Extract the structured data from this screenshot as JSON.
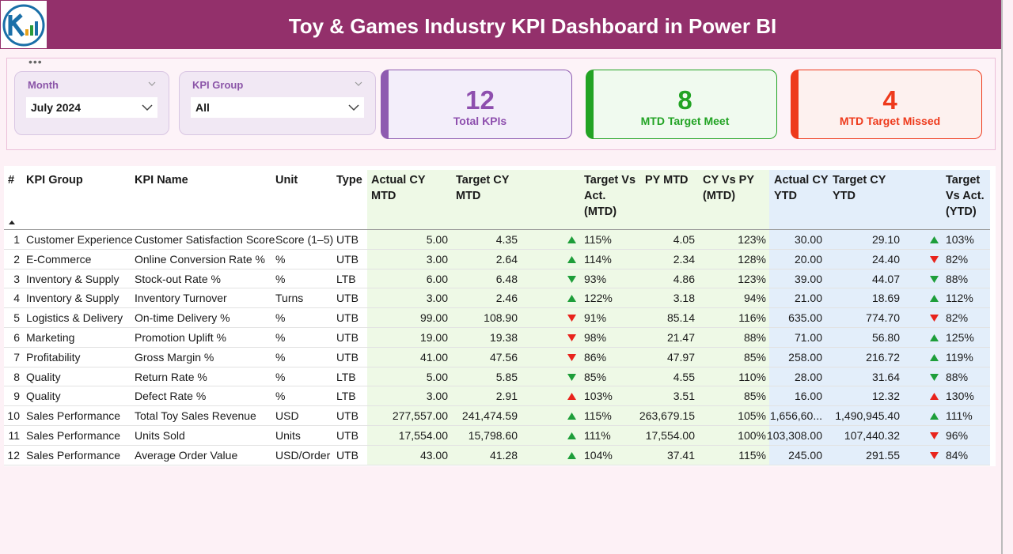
{
  "header": {
    "title": "Toy & Games Industry KPI Dashboard in Power BI"
  },
  "filters": [
    {
      "label": "Month",
      "value": "July 2024"
    },
    {
      "label": "KPI Group",
      "value": "All"
    }
  ],
  "cards": [
    {
      "value": 12,
      "label": "Total KPIs",
      "color": "#8e4fae",
      "accent": "#8e5bb0",
      "background": "#f3eefa"
    },
    {
      "value": 8,
      "label": "MTD Target Meet",
      "color": "#22a324",
      "accent": "#22a324",
      "background": "#f0faef"
    },
    {
      "value": 4,
      "label": "MTD Target Missed",
      "color": "#ee3a1c",
      "accent": "#ee3a1c",
      "background": "#fdf1ef"
    }
  ],
  "table": {
    "columns": [
      "#",
      "KPI Group",
      "KPI Name",
      "Unit",
      "Type",
      "Actual CY MTD",
      "Target CY MTD",
      "Target Vs Act. (MTD)",
      "PY MTD",
      "CY Vs PY (MTD)",
      "Actual CY YTD",
      "Target CY YTD",
      "Target Vs Act. (YTD)"
    ],
    "rows": [
      [
        "1",
        "Customer Experience",
        "Customer Satisfaction Score",
        "Score (1–5)",
        "UTB",
        "5.00",
        "4.35",
        "115%",
        "4.05",
        "123%",
        "30.00",
        "29.10",
        "103%"
      ],
      [
        "2",
        "E-Commerce",
        "Online Conversion Rate %",
        "%",
        "UTB",
        "3.00",
        "2.64",
        "114%",
        "2.34",
        "128%",
        "20.00",
        "24.40",
        "82%"
      ],
      [
        "3",
        "Inventory & Supply",
        "Stock-out Rate %",
        "%",
        "LTB",
        "6.00",
        "6.48",
        "93%",
        "4.86",
        "123%",
        "39.00",
        "44.07",
        "88%"
      ],
      [
        "4",
        "Inventory & Supply",
        "Inventory Turnover",
        "Turns",
        "UTB",
        "3.00",
        "2.46",
        "122%",
        "3.18",
        "94%",
        "21.00",
        "18.69",
        "112%"
      ],
      [
        "5",
        "Logistics & Delivery",
        "On-time Delivery %",
        "%",
        "UTB",
        "99.00",
        "108.90",
        "91%",
        "85.14",
        "116%",
        "635.00",
        "774.70",
        "82%"
      ],
      [
        "6",
        "Marketing",
        "Promotion Uplift %",
        "%",
        "UTB",
        "19.00",
        "19.38",
        "98%",
        "21.47",
        "88%",
        "71.00",
        "56.80",
        "125%"
      ],
      [
        "7",
        "Profitability",
        "Gross Margin %",
        "%",
        "UTB",
        "41.00",
        "47.56",
        "86%",
        "47.97",
        "85%",
        "258.00",
        "216.72",
        "119%"
      ],
      [
        "8",
        "Quality",
        "Return Rate %",
        "%",
        "LTB",
        "5.00",
        "5.85",
        "85%",
        "4.55",
        "110%",
        "28.00",
        "31.64",
        "88%"
      ],
      [
        "9",
        "Quality",
        "Defect Rate %",
        "%",
        "LTB",
        "3.00",
        "2.91",
        "103%",
        "3.51",
        "85%",
        "16.00",
        "12.32",
        "130%"
      ],
      [
        "10",
        "Sales Performance",
        "Total Toy Sales Revenue",
        "USD",
        "UTB",
        "277,557.00",
        "241,474.59",
        "115%",
        "263,679.15",
        "105%",
        "1,656,60...",
        "1,490,945.40",
        "111%"
      ],
      [
        "11",
        "Sales Performance",
        "Units Sold",
        "Units",
        "UTB",
        "17,554.00",
        "15,798.60",
        "111%",
        "17,554.00",
        "100%",
        "103,308.00",
        "107,440.32",
        "96%"
      ],
      [
        "12",
        "Sales Performance",
        "Average Order Value",
        "USD/Order",
        "UTB",
        "43.00",
        "41.28",
        "104%",
        "37.41",
        "115%",
        "245.00",
        "291.55",
        "84%"
      ]
    ],
    "arrow_colors": {
      "meet": "#1e9e3a",
      "miss": "#e8231c"
    },
    "mtd_arrows": [
      {
        "dir": "up",
        "status": "meet"
      },
      {
        "dir": "up",
        "status": "meet"
      },
      {
        "dir": "down",
        "status": "meet"
      },
      {
        "dir": "up",
        "status": "meet"
      },
      {
        "dir": "down",
        "status": "miss"
      },
      {
        "dir": "down",
        "status": "miss"
      },
      {
        "dir": "down",
        "status": "miss"
      },
      {
        "dir": "down",
        "status": "meet"
      },
      {
        "dir": "up",
        "status": "miss"
      },
      {
        "dir": "up",
        "status": "meet"
      },
      {
        "dir": "up",
        "status": "meet"
      },
      {
        "dir": "up",
        "status": "meet"
      }
    ],
    "ytd_arrows": [
      {
        "dir": "up",
        "status": "meet"
      },
      {
        "dir": "down",
        "status": "miss"
      },
      {
        "dir": "down",
        "status": "meet"
      },
      {
        "dir": "up",
        "status": "meet"
      },
      {
        "dir": "down",
        "status": "miss"
      },
      {
        "dir": "up",
        "status": "meet"
      },
      {
        "dir": "up",
        "status": "meet"
      },
      {
        "dir": "down",
        "status": "meet"
      },
      {
        "dir": "up",
        "status": "miss"
      },
      {
        "dir": "up",
        "status": "meet"
      },
      {
        "dir": "down",
        "status": "miss"
      },
      {
        "dir": "down",
        "status": "miss"
      }
    ]
  }
}
